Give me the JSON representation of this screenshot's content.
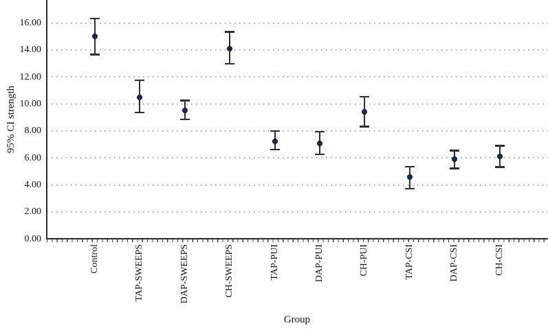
{
  "chart_data": {
    "type": "scatter",
    "subtype": "mean-with-95ci-errorbars",
    "title": "",
    "xlabel": "Group",
    "ylabel": "95% CI strength",
    "categories": [
      "Control",
      "TAP-SWEEPS",
      "DAP-SWEEPS",
      "CH-SWEEPS",
      "TAP-PUI",
      "DAP-PUI",
      "CH-PUI",
      "TAP-CSI",
      "DAP-CSI",
      "CH-CSI"
    ],
    "series": [
      {
        "name": "mean",
        "means": [
          15.0,
          10.5,
          9.5,
          14.1,
          7.2,
          7.05,
          9.4,
          4.6,
          5.9,
          6.1
        ],
        "ci_lower": [
          13.6,
          9.3,
          8.8,
          12.9,
          6.55,
          6.2,
          8.25,
          3.65,
          5.15,
          5.25
        ],
        "ci_upper": [
          16.4,
          11.8,
          10.3,
          15.4,
          8.05,
          8.0,
          10.6,
          5.4,
          6.6,
          6.95
        ]
      }
    ],
    "yticks": [
      0,
      2,
      4,
      6,
      8,
      10,
      12,
      14,
      16
    ],
    "ytick_labels": [
      "0.00",
      "2.00",
      "4.00",
      "6.00",
      "8.00",
      "10.00",
      "12.00",
      "14.00",
      "16.00"
    ],
    "ylim": [
      0,
      17.7
    ],
    "grid": "horizontal-dotted",
    "legend": "none",
    "colors": {
      "marker": "#1e2c48",
      "marker_border": "#0d1627",
      "errorbar": "#2e2e2e",
      "gridline": "#8f8f8f",
      "axis": "#2b2b2b",
      "background": "#ffffff"
    }
  }
}
